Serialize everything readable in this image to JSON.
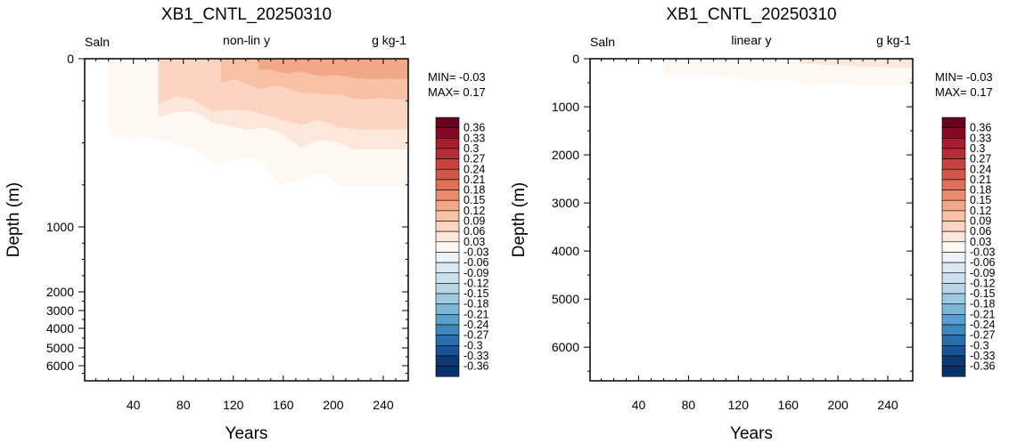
{
  "chart_data": [
    {
      "type": "contour",
      "title": "XB1_CNTL_20250310",
      "left_string": "Saln",
      "center_string": "non-lin y",
      "right_string": "g kg-1",
      "xlabel": "Years",
      "ylabel": "Depth (m)",
      "y_scale": "non-linear",
      "xlim": [
        1,
        260
      ],
      "x_ticks": [
        40,
        80,
        120,
        160,
        200,
        240
      ],
      "ylim": [
        0,
        6500
      ],
      "y_ticks": [
        0,
        1000,
        2000,
        3000,
        4000,
        5000,
        6000
      ],
      "min_label": "MIN= -0.03",
      "max_label": "MAX=  0.17",
      "regions": [
        {
          "level": 0.03,
          "x_start": 20,
          "x_end": 260,
          "depth_range": [
            0,
            760
          ]
        },
        {
          "level": 0.06,
          "x_start": 60,
          "x_end": 260,
          "depth_range": [
            0,
            540
          ]
        },
        {
          "level": 0.09,
          "x_start": 60,
          "x_end": 260,
          "depth_range": [
            0,
            420
          ]
        },
        {
          "level": 0.12,
          "x_start": 110,
          "x_end": 260,
          "depth_range": [
            0,
            240
          ]
        },
        {
          "level": 0.15,
          "x_start": 140,
          "x_end": 260,
          "depth_range": [
            0,
            120
          ]
        }
      ]
    },
    {
      "type": "contour",
      "title": "XB1_CNTL_20250310",
      "left_string": "Saln",
      "center_string": "linear y",
      "right_string": "g kg-1",
      "xlabel": "Years",
      "ylabel": "Depth (m)",
      "y_scale": "linear",
      "xlim": [
        1,
        260
      ],
      "x_ticks": [
        40,
        80,
        120,
        160,
        200,
        240
      ],
      "ylim": [
        0,
        6700
      ],
      "y_ticks": [
        0,
        1000,
        2000,
        3000,
        4000,
        5000,
        6000
      ],
      "min_label": "MIN= -0.03",
      "max_label": "MAX=  0.17",
      "regions": [
        {
          "level": 0.03,
          "x_start": 60,
          "x_end": 260,
          "depth_range": [
            0,
            560
          ]
        },
        {
          "level": 0.06,
          "x_start": 170,
          "x_end": 260,
          "depth_range": [
            0,
            180
          ]
        }
      ]
    }
  ],
  "colorbar": {
    "labels": [
      "0.36",
      "0.33",
      "0.3",
      "0.27",
      "0.24",
      "0.21",
      "0.18",
      "0.15",
      "0.12",
      "0.09",
      "0.06",
      "0.03",
      "-0.03",
      "-0.06",
      "-0.09",
      "-0.12",
      "-0.15",
      "-0.18",
      "-0.21",
      "-0.24",
      "-0.27",
      "-0.3",
      "-0.33",
      "-0.36"
    ],
    "colors": [
      "#67001f",
      "#860a27",
      "#a51d2f",
      "#b72d36",
      "#c6433f",
      "#d25749",
      "#df6f57",
      "#ea8b6e",
      "#f3a789",
      "#f8c0a4",
      "#fbd5c1",
      "#fde7da",
      "#fff8f2",
      "#ecf2f7",
      "#dde9f2",
      "#cde0ed",
      "#b9d6e8",
      "#9ecae1",
      "#7db7d8",
      "#5aa0cd",
      "#3f87bf",
      "#2a6daf",
      "#185397",
      "#0b3a75",
      "#08306b"
    ]
  }
}
